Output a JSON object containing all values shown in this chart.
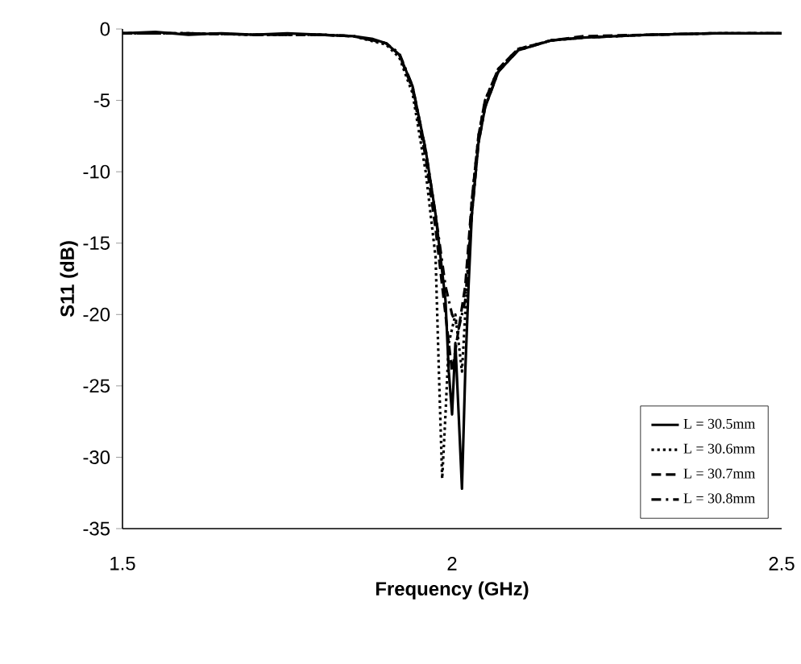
{
  "chart_data": {
    "type": "line",
    "xlabel": "Frequency (GHz)",
    "ylabel": "S11 (dB)",
    "xlim": [
      1.5,
      2.5
    ],
    "xticks": [
      1.5,
      2,
      2.5
    ],
    "ylim": [
      -35,
      0
    ],
    "yticks": [
      -35,
      -30,
      -25,
      -20,
      -15,
      -10,
      -5,
      0
    ],
    "legend": "bottom right",
    "grid": false,
    "series": [
      {
        "name": "L = 30.5mm",
        "color": "#000000",
        "line_style": "solid",
        "x": [
          1.5,
          1.55,
          1.6,
          1.65,
          1.7,
          1.75,
          1.8,
          1.85,
          1.88,
          1.9,
          1.92,
          1.94,
          1.96,
          1.975,
          1.99,
          1.995,
          2.0,
          2.005,
          2.01,
          2.015,
          2.02,
          2.025,
          2.03,
          2.04,
          2.05,
          2.07,
          2.1,
          2.15,
          2.2,
          2.3,
          2.4,
          2.5
        ],
        "values": [
          -0.3,
          -0.2,
          -0.4,
          -0.3,
          -0.4,
          -0.3,
          -0.4,
          -0.5,
          -0.7,
          -1.0,
          -1.8,
          -4,
          -8.5,
          -13,
          -19,
          -24,
          -27,
          -22,
          -27,
          -32.2,
          -24,
          -18,
          -13,
          -8,
          -5.5,
          -3,
          -1.5,
          -0.8,
          -0.6,
          -0.4,
          -0.3,
          -0.3
        ]
      },
      {
        "name": "L = 30.6mm",
        "color": "#000000",
        "line_style": "dotted",
        "x": [
          1.5,
          1.6,
          1.7,
          1.8,
          1.85,
          1.9,
          1.92,
          1.94,
          1.96,
          1.975,
          1.98,
          1.985,
          1.99,
          1.995,
          2.005,
          2.015,
          2.02,
          2.03,
          2.04,
          2.05,
          2.07,
          2.1,
          2.15,
          2.2,
          2.3,
          2.4,
          2.5
        ],
        "values": [
          -0.3,
          -0.3,
          -0.4,
          -0.4,
          -0.5,
          -1.1,
          -2,
          -4.5,
          -10,
          -16,
          -24,
          -31.5,
          -27,
          -22,
          -20,
          -24,
          -20,
          -12,
          -7.5,
          -5,
          -2.8,
          -1.4,
          -0.8,
          -0.6,
          -0.4,
          -0.3,
          -0.3
        ]
      },
      {
        "name": "L = 30.7mm",
        "color": "#000000",
        "line_style": "dashed",
        "x": [
          1.5,
          1.6,
          1.7,
          1.8,
          1.85,
          1.9,
          1.92,
          1.94,
          1.96,
          1.975,
          1.99,
          2.0,
          2.01,
          2.02,
          2.03,
          2.04,
          2.05,
          2.07,
          2.1,
          2.15,
          2.2,
          2.3,
          2.4,
          2.5
        ],
        "values": [
          -0.3,
          -0.3,
          -0.4,
          -0.4,
          -0.5,
          -1.0,
          -1.8,
          -4.2,
          -9,
          -14,
          -20,
          -24,
          -21,
          -18,
          -12,
          -7.5,
          -5,
          -2.8,
          -1.4,
          -0.8,
          -0.5,
          -0.4,
          -0.3,
          -0.3
        ]
      },
      {
        "name": "L = 30.8mm",
        "color": "#000000",
        "line_style": "dashdot",
        "x": [
          1.5,
          1.6,
          1.7,
          1.8,
          1.85,
          1.9,
          1.92,
          1.94,
          1.96,
          1.975,
          1.99,
          2.0,
          2.01,
          2.02,
          2.03,
          2.04,
          2.05,
          2.07,
          2.1,
          2.15,
          2.2,
          2.3,
          2.4,
          2.5
        ],
        "values": [
          -0.3,
          -0.3,
          -0.4,
          -0.4,
          -0.5,
          -1.0,
          -1.7,
          -4,
          -8.5,
          -13,
          -18,
          -20,
          -21,
          -19,
          -13,
          -8,
          -5.5,
          -3,
          -1.5,
          -0.8,
          -0.6,
          -0.4,
          -0.3,
          -0.3
        ]
      }
    ]
  }
}
